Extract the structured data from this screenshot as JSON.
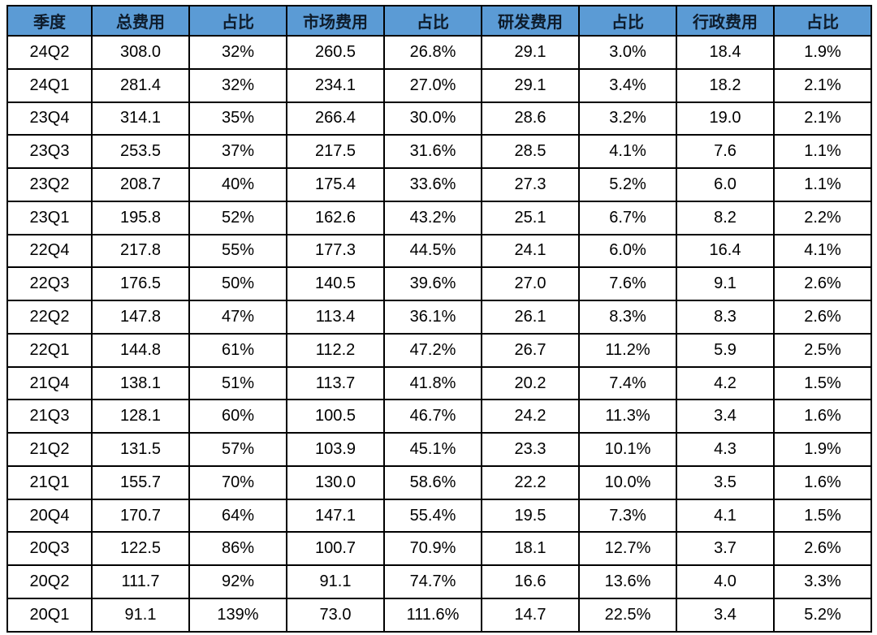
{
  "colors": {
    "header_bg": "#5b9bd5",
    "header_text": "#0e1c2b",
    "cell_bg": "#ffffff",
    "cell_text": "#000000",
    "grid_border": "#000000"
  },
  "chart_data": {
    "type": "table",
    "columns": [
      "季度",
      "总费用",
      "占比",
      "市场费用",
      "占比",
      "研发费用",
      "占比",
      "行政费用",
      "占比"
    ],
    "rows": [
      [
        "24Q2",
        "308.0",
        "32%",
        "260.5",
        "26.8%",
        "29.1",
        "3.0%",
        "18.4",
        "1.9%"
      ],
      [
        "24Q1",
        "281.4",
        "32%",
        "234.1",
        "27.0%",
        "29.1",
        "3.4%",
        "18.2",
        "2.1%"
      ],
      [
        "23Q4",
        "314.1",
        "35%",
        "266.4",
        "30.0%",
        "28.6",
        "3.2%",
        "19.0",
        "2.1%"
      ],
      [
        "23Q3",
        "253.5",
        "37%",
        "217.5",
        "31.6%",
        "28.5",
        "4.1%",
        "7.6",
        "1.1%"
      ],
      [
        "23Q2",
        "208.7",
        "40%",
        "175.4",
        "33.6%",
        "27.3",
        "5.2%",
        "6.0",
        "1.1%"
      ],
      [
        "23Q1",
        "195.8",
        "52%",
        "162.6",
        "43.2%",
        "25.1",
        "6.7%",
        "8.2",
        "2.2%"
      ],
      [
        "22Q4",
        "217.8",
        "55%",
        "177.3",
        "44.5%",
        "24.1",
        "6.0%",
        "16.4",
        "4.1%"
      ],
      [
        "22Q3",
        "176.5",
        "50%",
        "140.5",
        "39.6%",
        "27.0",
        "7.6%",
        "9.1",
        "2.6%"
      ],
      [
        "22Q2",
        "147.8",
        "47%",
        "113.4",
        "36.1%",
        "26.1",
        "8.3%",
        "8.3",
        "2.6%"
      ],
      [
        "22Q1",
        "144.8",
        "61%",
        "112.2",
        "47.2%",
        "26.7",
        "11.2%",
        "5.9",
        "2.5%"
      ],
      [
        "21Q4",
        "138.1",
        "51%",
        "113.7",
        "41.8%",
        "20.2",
        "7.4%",
        "4.2",
        "1.5%"
      ],
      [
        "21Q3",
        "128.1",
        "60%",
        "100.5",
        "46.7%",
        "24.2",
        "11.3%",
        "3.4",
        "1.6%"
      ],
      [
        "21Q2",
        "131.5",
        "57%",
        "103.9",
        "45.1%",
        "23.3",
        "10.1%",
        "4.3",
        "1.9%"
      ],
      [
        "21Q1",
        "155.7",
        "70%",
        "130.0",
        "58.6%",
        "22.2",
        "10.0%",
        "3.5",
        "1.6%"
      ],
      [
        "20Q4",
        "170.7",
        "64%",
        "147.1",
        "55.4%",
        "19.5",
        "7.3%",
        "4.1",
        "1.5%"
      ],
      [
        "20Q3",
        "122.5",
        "86%",
        "100.7",
        "70.9%",
        "18.1",
        "12.7%",
        "3.7",
        "2.6%"
      ],
      [
        "20Q2",
        "111.7",
        "92%",
        "91.1",
        "74.7%",
        "16.6",
        "13.6%",
        "4.0",
        "3.3%"
      ],
      [
        "20Q1",
        "91.1",
        "139%",
        "73.0",
        "111.6%",
        "14.7",
        "22.5%",
        "3.4",
        "5.2%"
      ]
    ]
  }
}
